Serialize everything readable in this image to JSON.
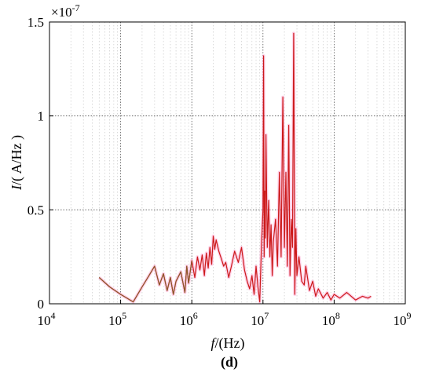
{
  "chart_data": {
    "type": "line",
    "title": "",
    "panel_label": "(d)",
    "xlabel": {
      "var": "f",
      "unit": "/(Hz)"
    },
    "ylabel": {
      "var": "I",
      "unit": "/( A/Hz )"
    },
    "xscale": "log",
    "xlim": [
      10000,
      1000000000
    ],
    "ylim": [
      0,
      1.5
    ],
    "y_multiplier": "×10",
    "y_multiplier_exp": "-7",
    "x_ticks": [
      {
        "base": "10",
        "exp": "4",
        "value": 10000
      },
      {
        "base": "10",
        "exp": "5",
        "value": 100000
      },
      {
        "base": "10",
        "exp": "6",
        "value": 1000000
      },
      {
        "base": "10",
        "exp": "7",
        "value": 10000000
      },
      {
        "base": "10",
        "exp": "8",
        "value": 100000000
      },
      {
        "base": "10",
        "exp": "9",
        "value": 1000000000
      }
    ],
    "y_ticks": [
      {
        "label": "0",
        "value": 0
      },
      {
        "label": "0.5",
        "value": 0.5
      },
      {
        "label": "1",
        "value": 1
      },
      {
        "label": "1.5",
        "value": 1.5
      }
    ],
    "grid": true,
    "colors": {
      "line": "#cc1a1a",
      "line_low": "#8b5a2b",
      "halo": "#ff99cc"
    },
    "series": [
      {
        "x": [
          50000,
          70000,
          100000,
          150000,
          200000,
          250000,
          300000,
          350000,
          400000,
          450000,
          500000,
          550000,
          600000,
          700000,
          800000,
          850000,
          900000,
          1000000,
          1100000,
          1200000,
          1300000,
          1400000,
          1500000,
          1600000,
          1700000,
          1800000,
          1900000,
          2000000,
          2100000,
          2200000,
          2400000,
          2600000,
          2800000,
          3000000,
          3300000,
          3600000,
          4000000,
          4500000,
          5000000,
          5500000,
          6000000,
          6500000,
          7000000,
          7500000,
          8000000,
          8500000,
          9000000,
          9500000,
          10000000,
          10200000,
          10400000,
          10600000,
          10800000,
          11000000,
          11500000,
          12000000,
          12500000,
          13000000,
          13500000,
          14000000,
          15000000,
          16000000,
          17000000,
          18000000,
          19000000,
          20000000,
          21000000,
          22000000,
          23000000,
          24000000,
          25000000,
          26000000,
          27000000,
          28000000,
          29000000,
          30000000,
          32000000,
          35000000,
          38000000,
          40000000,
          45000000,
          50000000,
          55000000,
          60000000,
          70000000,
          80000000,
          90000000,
          100000000,
          120000000,
          150000000,
          200000000,
          250000000,
          300000000,
          330000000
        ],
        "values": [
          0.14,
          0.09,
          0.05,
          0.01,
          0.09,
          0.15,
          0.2,
          0.1,
          0.16,
          0.07,
          0.14,
          0.05,
          0.12,
          0.17,
          0.06,
          0.2,
          0.11,
          0.23,
          0.14,
          0.25,
          0.18,
          0.26,
          0.15,
          0.27,
          0.19,
          0.3,
          0.21,
          0.36,
          0.29,
          0.34,
          0.28,
          0.24,
          0.2,
          0.22,
          0.14,
          0.2,
          0.28,
          0.22,
          0.3,
          0.18,
          0.12,
          0.08,
          0.15,
          0.05,
          0.2,
          0.09,
          0.01,
          0.3,
          0.5,
          1.32,
          0.25,
          0.6,
          0.35,
          0.9,
          0.3,
          0.55,
          0.25,
          0.42,
          0.15,
          0.33,
          0.45,
          0.2,
          0.7,
          0.25,
          1.1,
          0.3,
          0.7,
          0.2,
          0.95,
          0.15,
          0.45,
          0.3,
          1.44,
          0.05,
          0.4,
          0.15,
          0.25,
          0.12,
          0.1,
          0.2,
          0.07,
          0.12,
          0.04,
          0.08,
          0.03,
          0.06,
          0.02,
          0.05,
          0.03,
          0.06,
          0.02,
          0.04,
          0.03,
          0.04
        ]
      }
    ]
  }
}
